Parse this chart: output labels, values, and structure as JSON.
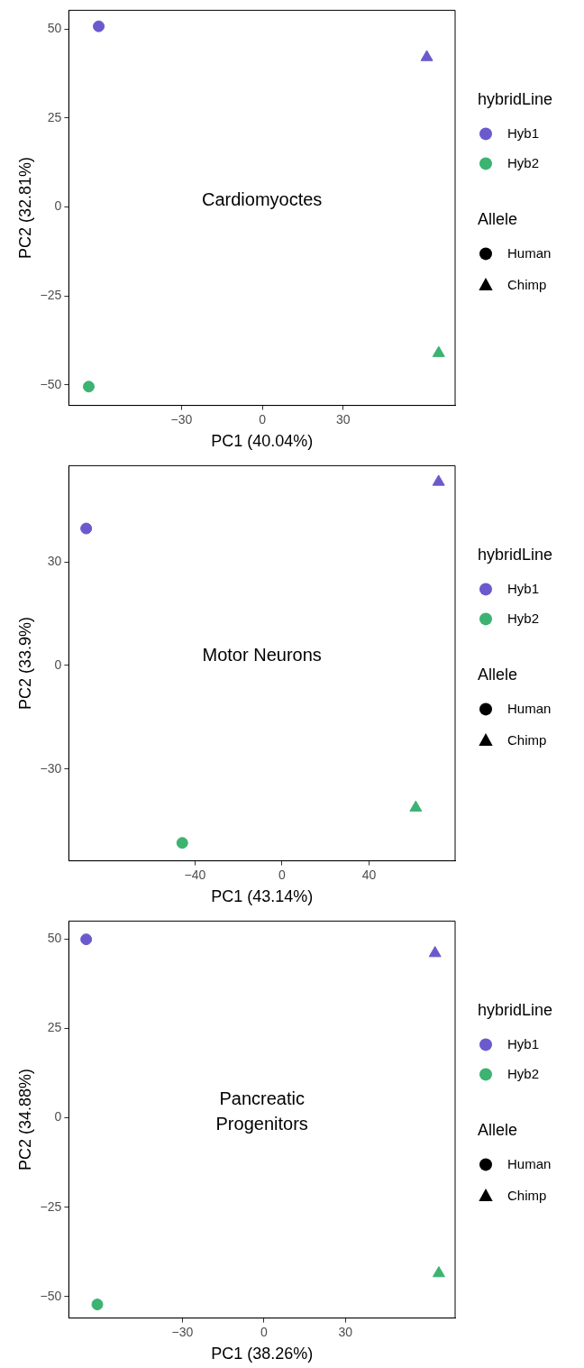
{
  "chart_data": [
    {
      "type": "scatter",
      "title": "Cardiomyoctes",
      "xlabel": "PC1 (40.04%)",
      "ylabel": "PC2 (32.81%)",
      "xlim": [
        -71.8,
        71.5
      ],
      "ylim": [
        -55.8,
        55.3
      ],
      "xticks": [
        -30,
        0,
        30
      ],
      "yticks": [
        -50,
        -25,
        0,
        25,
        50
      ],
      "grid": false,
      "legend": "right",
      "legend_title": "hybridLine",
      "annotations": [
        "Allele"
      ],
      "series": [
        {
          "name": "Hyb1",
          "color": "#6a5acd",
          "x": [
            -60.7,
            61.0
          ],
          "values": [
            50.8,
            42.1
          ],
          "marker": [
            "circle",
            "triangle"
          ]
        },
        {
          "name": "Hyb2",
          "color": "#3cb371",
          "x": [
            -64.4,
            65.4
          ],
          "values": [
            -50.5,
            -41.1
          ],
          "marker": [
            "circle",
            "triangle"
          ]
        },
        {
          "name": "Human",
          "color": "#000000",
          "marker": "circle"
        },
        {
          "name": "Chimp",
          "color": "#000000",
          "marker": "triangle"
        }
      ]
    },
    {
      "type": "scatter",
      "title": "Motor Neurons",
      "xlabel": "PC1 (43.14%)",
      "ylabel": "PC2 (33.9%)",
      "xlim": [
        -98.1,
        79.6
      ],
      "ylim": [
        -56.6,
        57.9
      ],
      "xticks": [
        -40,
        0,
        40
      ],
      "yticks": [
        -30,
        0,
        30
      ],
      "grid": false,
      "legend": "right",
      "legend_title": "hybridLine",
      "annotations": [
        "Allele"
      ],
      "series": [
        {
          "name": "Hyb1",
          "color": "#6a5acd",
          "x": [
            -90.1,
            72.0
          ],
          "values": [
            39.7,
            53.2
          ],
          "marker": [
            "circle",
            "triangle"
          ]
        },
        {
          "name": "Hyb2",
          "color": "#3cb371",
          "x": [
            -45.9,
            61.5
          ],
          "values": [
            -51.4,
            -41.2
          ],
          "marker": [
            "circle",
            "triangle"
          ]
        },
        {
          "name": "Human",
          "color": "#000000",
          "marker": "circle"
        },
        {
          "name": "Chimp",
          "color": "#000000",
          "marker": "triangle"
        }
      ]
    },
    {
      "type": "scatter",
      "title": "Pancreatic Progenitors",
      "xlabel": "PC1 (38.26%)",
      "ylabel": "PC2 (34.88%)",
      "xlim": [
        -71.8,
        70.4
      ],
      "ylim": [
        -56.0,
        55.0
      ],
      "xticks": [
        -30,
        0,
        30
      ],
      "yticks": [
        -50,
        -25,
        0,
        25,
        50
      ],
      "grid": false,
      "legend": "right",
      "legend_title": "hybridLine",
      "annotations": [
        "Allele"
      ],
      "series": [
        {
          "name": "Hyb1",
          "color": "#6a5acd",
          "x": [
            -65.4,
            63.0
          ],
          "values": [
            49.9,
            46.0
          ],
          "marker": [
            "circle",
            "triangle"
          ]
        },
        {
          "name": "Hyb2",
          "color": "#3cb371",
          "x": [
            -61.3,
            64.4
          ],
          "values": [
            -52.2,
            -43.5
          ],
          "marker": [
            "circle",
            "triangle"
          ]
        },
        {
          "name": "Human",
          "color": "#000000",
          "marker": "circle"
        },
        {
          "name": "Chimp",
          "color": "#000000",
          "marker": "triangle"
        }
      ]
    }
  ]
}
